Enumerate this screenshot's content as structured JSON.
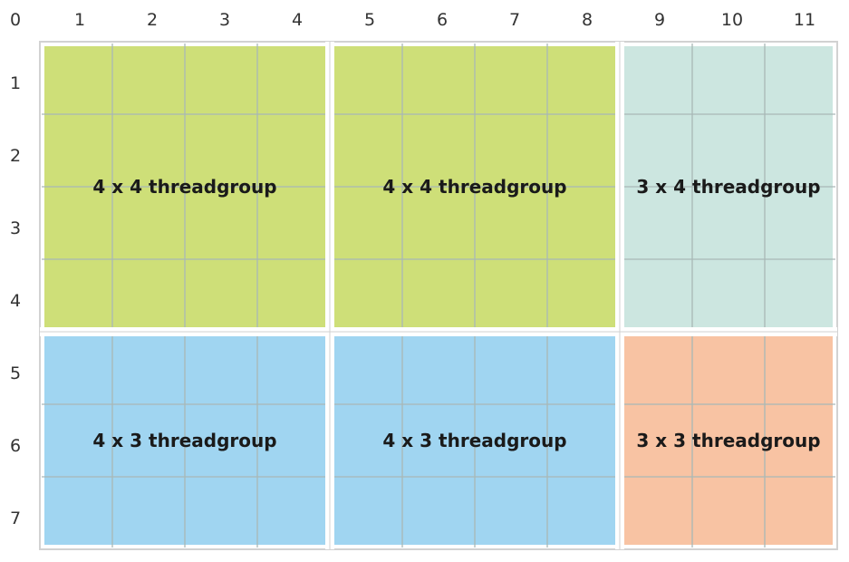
{
  "columns": [
    "0",
    "1",
    "2",
    "3",
    "4",
    "5",
    "6",
    "7",
    "8",
    "9",
    "10",
    "11"
  ],
  "rows": [
    "1",
    "2",
    "3",
    "4",
    "5",
    "6",
    "7"
  ],
  "threadgroups": [
    {
      "label": "4 x 4 threadgroup",
      "col": 0,
      "row": 0,
      "cols": 4,
      "rows": 4,
      "color": "#cedf78"
    },
    {
      "label": "4 x 4 threadgroup",
      "col": 4,
      "row": 0,
      "cols": 4,
      "rows": 4,
      "color": "#cedf78"
    },
    {
      "label": "3 x 4 threadgroup",
      "col": 8,
      "row": 0,
      "cols": 3,
      "rows": 4,
      "color": "#cce6e0"
    },
    {
      "label": "4 x 3 threadgroup",
      "col": 0,
      "row": 4,
      "cols": 4,
      "rows": 3,
      "color": "#a0d5f1"
    },
    {
      "label": "4 x 3 threadgroup",
      "col": 4,
      "row": 4,
      "cols": 4,
      "rows": 3,
      "color": "#a0d5f1"
    },
    {
      "label": "3 x 3 threadgroup",
      "col": 8,
      "row": 4,
      "cols": 3,
      "rows": 3,
      "color": "#f8c3a3"
    }
  ],
  "colors": {
    "grid_line": "#a9b8b6",
    "outer_border": "#d2d2d2",
    "group_gap": "#ffffff"
  }
}
